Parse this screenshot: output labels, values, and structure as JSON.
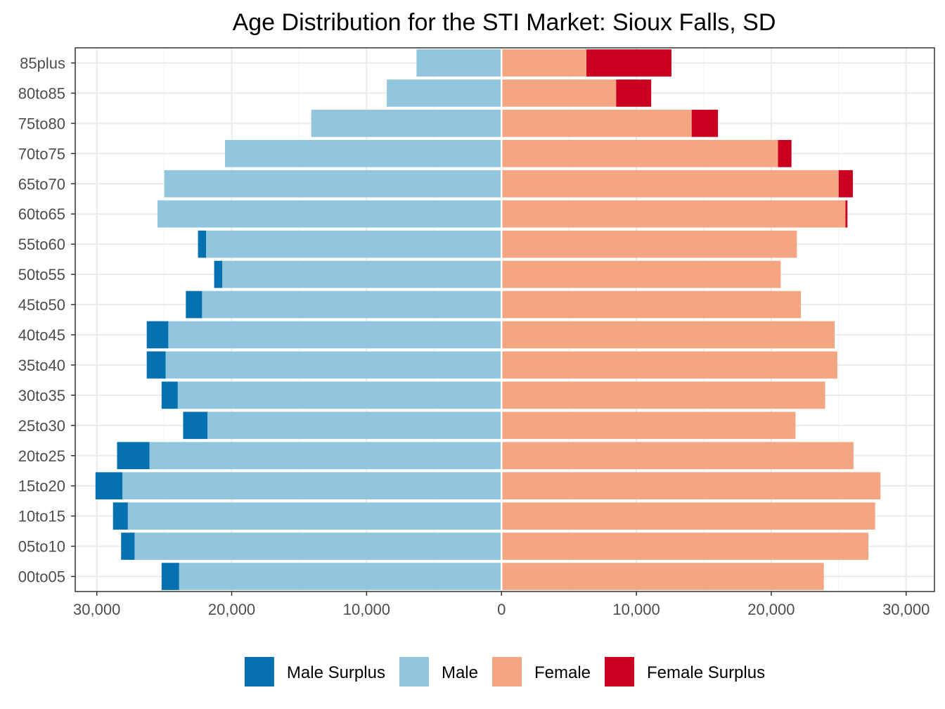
{
  "chart_data": {
    "type": "bar",
    "orientation": "horizontal",
    "title": "Age Distribution for the STI Market: Sioux Falls, SD",
    "xlabel": "",
    "ylabel": "",
    "xlim": [
      -30000,
      30000
    ],
    "x_ticks": [
      -30000,
      -20000,
      -10000,
      0,
      10000,
      20000,
      30000
    ],
    "x_tick_labels": [
      "30,000",
      "20,000",
      "10,000",
      "0",
      "10,000",
      "20,000",
      "30,000"
    ],
    "categories": [
      "00to05",
      "05to10",
      "10to15",
      "15to20",
      "20to25",
      "25to30",
      "30to35",
      "35to40",
      "40to45",
      "45to50",
      "50to55",
      "55to60",
      "60to65",
      "65to70",
      "70to75",
      "75to80",
      "80to85",
      "85plus"
    ],
    "series": [
      {
        "name": "Male Surplus",
        "color": "#0571b0",
        "stack": "male",
        "values": [
          1300,
          1000,
          1100,
          2000,
          2400,
          1800,
          1200,
          1400,
          1600,
          1200,
          600,
          600,
          0,
          0,
          0,
          0,
          0,
          0
        ]
      },
      {
        "name": "Male",
        "color": "#92c5de",
        "stack": "male",
        "values": [
          23900,
          27200,
          27700,
          28100,
          26100,
          21800,
          24000,
          24900,
          24700,
          22200,
          20700,
          21900,
          25500,
          25000,
          20500,
          14100,
          8500,
          6300
        ]
      },
      {
        "name": "Female",
        "color": "#f4a582",
        "stack": "female",
        "values": [
          23900,
          27200,
          27700,
          28100,
          26100,
          21800,
          24000,
          24900,
          24700,
          22200,
          20700,
          21900,
          25500,
          25000,
          20500,
          14100,
          8500,
          6300
        ]
      },
      {
        "name": "Female Surplus",
        "color": "#ca0020",
        "stack": "female",
        "values": [
          0,
          0,
          0,
          0,
          0,
          0,
          0,
          0,
          0,
          0,
          0,
          0,
          150,
          1050,
          1000,
          1950,
          2600,
          6300
        ]
      }
    ],
    "grid": true,
    "legend_position": "bottom"
  }
}
